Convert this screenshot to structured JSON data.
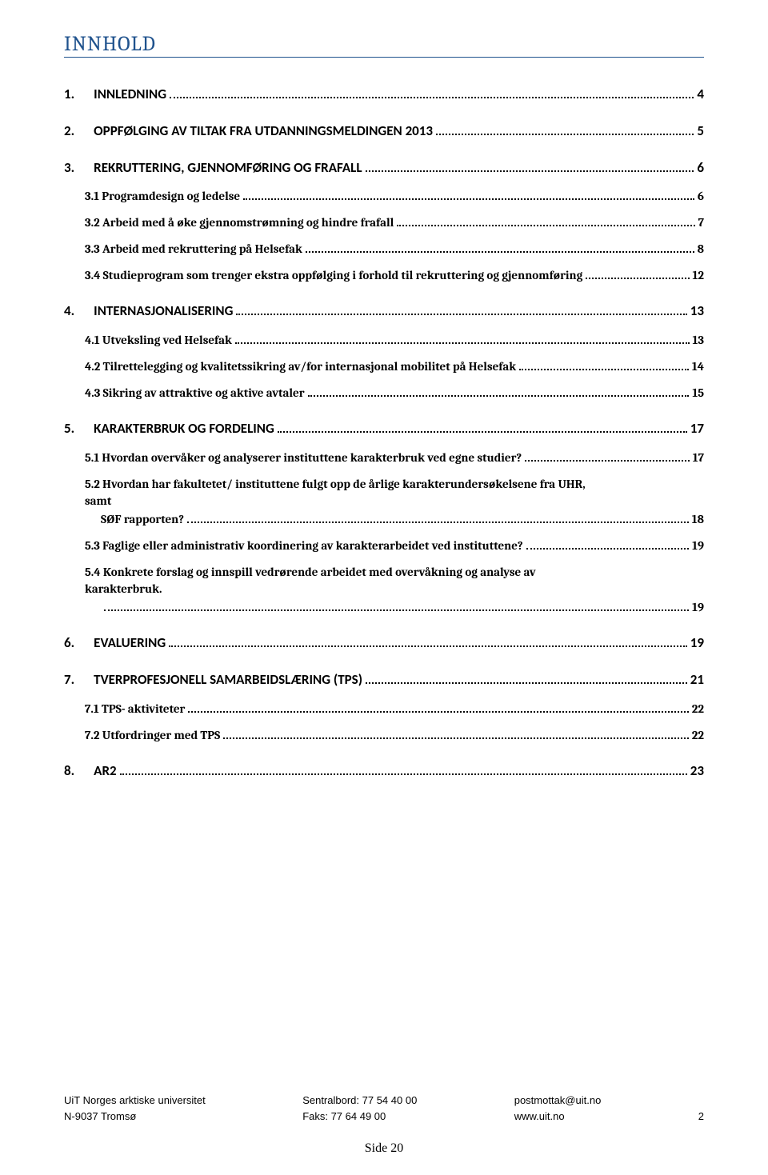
{
  "title": "INNHOLD",
  "toc": [
    {
      "level": 1,
      "first": true,
      "num": "1.",
      "label": "INNLEDNING",
      "page": "4"
    },
    {
      "level": 1,
      "num": "2.",
      "label": "OPPFØLGING AV TILTAK FRA UTDANNINGSMELDINGEN 2013",
      "page": "5"
    },
    {
      "level": 1,
      "num": "3.",
      "label": "REKRUTTERING, GJENNOMFØRING OG FRAFALL",
      "page": "6"
    },
    {
      "level": 2,
      "num": "",
      "label": "3.1 Programdesign og ledelse",
      "page": "6"
    },
    {
      "level": 2,
      "num": "",
      "label": "3.2 Arbeid med å øke gjennomstrømning og hindre frafall",
      "page": "7"
    },
    {
      "level": 2,
      "num": "",
      "label": "3.3 Arbeid med rekruttering på Helsefak",
      "page": "8"
    },
    {
      "level": 2,
      "num": "",
      "label": "3.4 Studieprogram som trenger ekstra oppfølging i forhold til rekruttering og gjennomføring",
      "page": "12"
    },
    {
      "level": 1,
      "num": "4.",
      "label": "INTERNASJONALISERING",
      "page": "13"
    },
    {
      "level": 2,
      "num": "",
      "label": "4.1 Utveksling ved Helsefak",
      "page": "13"
    },
    {
      "level": 2,
      "num": "",
      "label": "4.2 Tilrettelegging og kvalitetssikring av/for internasjonal mobilitet på Helsefak",
      "page": "14"
    },
    {
      "level": 2,
      "num": "",
      "label": "4.3 Sikring av attraktive og aktive avtaler",
      "page": "15"
    },
    {
      "level": 1,
      "num": "5.",
      "label": "KARAKTERBRUK OG FORDELING",
      "page": "17"
    },
    {
      "level": 2,
      "num": "",
      "label": "5.1 Hvordan overvåker og analyserer instituttene karakterbruk ved egne studier?",
      "page": "17"
    },
    {
      "level": 2,
      "num": "",
      "label": "5.2 Hvordan har fakultetet/ instituttene fulgt opp de årlige karakterundersøkelsene fra UHR, samt",
      "cont": "SØF rapporten?",
      "page": "18"
    },
    {
      "level": 2,
      "num": "",
      "label": "5.3 Faglige eller administrativ koordinering av karakterarbeidet ved instituttene?",
      "page": "19"
    },
    {
      "level": 2,
      "num": "",
      "label": "5.4 Konkrete forslag og innspill vedrørende arbeidet med overvåkning og analyse av karakterbruk.",
      "page": "19",
      "pagebreak": true
    },
    {
      "level": 1,
      "num": "6.",
      "label": "EVALUERING",
      "page": "19"
    },
    {
      "level": 1,
      "num": "7.",
      "label": "TVERPROFESJONELL SAMARBEIDSLÆRING (TPS)",
      "page": "21"
    },
    {
      "level": 2,
      "num": "",
      "label": "7.1 TPS- aktiviteter",
      "page": "22"
    },
    {
      "level": 2,
      "num": "",
      "label": "7.2 Utfordringer med TPS",
      "page": "22"
    },
    {
      "level": 1,
      "num": "8.",
      "label": "AR2",
      "page": "23"
    }
  ],
  "footer": {
    "left1": "UiT Norges arktiske universitet",
    "left2": "N-9037 Tromsø",
    "mid1": "Sentralbord: 77 54 40 00",
    "mid2": "Faks: 77 64 49 00",
    "right1": "postmottak@uit.no",
    "right2": "www.uit.no",
    "pagenum": "2"
  },
  "bottom_pagelabel": "Side 20"
}
